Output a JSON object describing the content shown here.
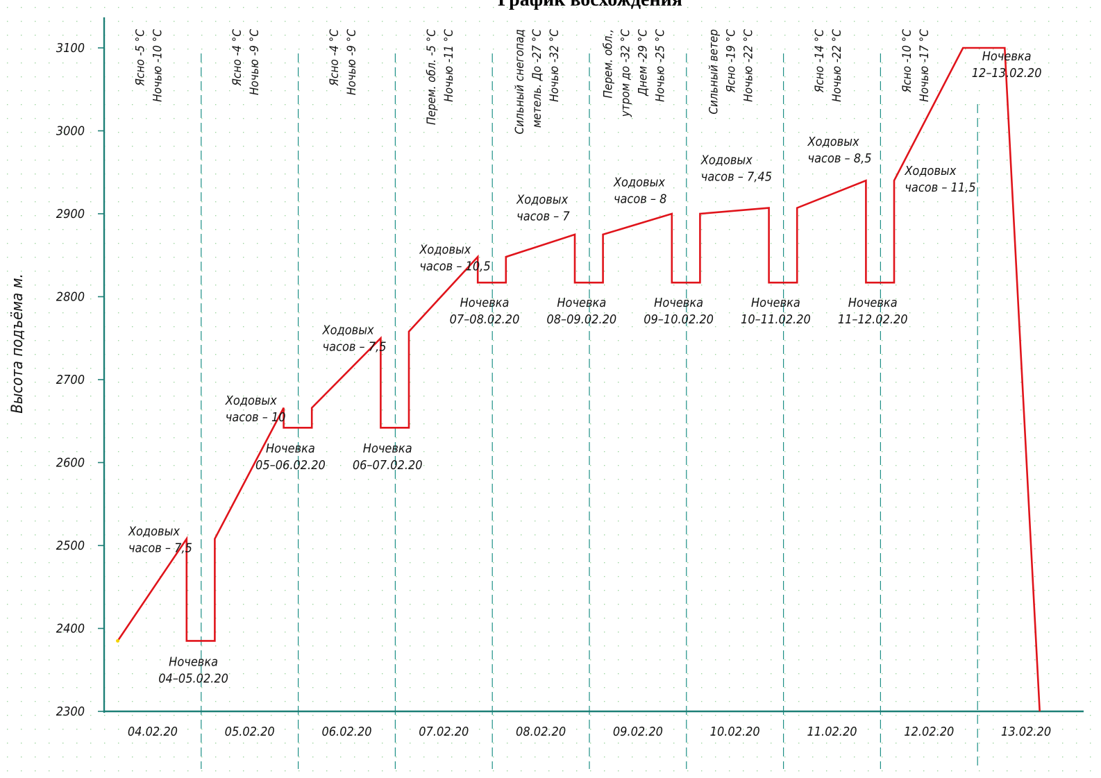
{
  "chart_data": {
    "type": "line",
    "title": "График восхождения",
    "ylabel": "Высота подъёма м.",
    "xlabel": "",
    "ylim": [
      2300,
      3100
    ],
    "yticks": [
      2300,
      2400,
      2500,
      2600,
      2700,
      2800,
      2900,
      3000,
      3100
    ],
    "x_range_days": [
      0,
      9.5
    ],
    "categories": [
      "04.02.20",
      "05.02.20",
      "06.02.20",
      "07.02.20",
      "08.02.20",
      "09.02.20",
      "10.02.20",
      "11.02.20",
      "12.02.20",
      "13.02.20"
    ],
    "colors": {
      "line": "#e0141b",
      "axis": "#1c7f76",
      "grid": "#1c8f86",
      "dots": "#7ac67e",
      "deg": "#1c7f76"
    },
    "series": [
      {
        "values": [
          {
            "x": 0.14,
            "y": 2385
          },
          {
            "x": 0.85,
            "y": 2508
          },
          {
            "x": 0.85,
            "y": 2385
          },
          {
            "x": 1.14,
            "y": 2385
          },
          {
            "x": 1.14,
            "y": 2508
          },
          {
            "x": 1.85,
            "y": 2666
          },
          {
            "x": 1.85,
            "y": 2642
          },
          {
            "x": 2.14,
            "y": 2642
          },
          {
            "x": 2.14,
            "y": 2666
          },
          {
            "x": 2.85,
            "y": 2750
          },
          {
            "x": 2.85,
            "y": 2642
          },
          {
            "x": 3.14,
            "y": 2642
          },
          {
            "x": 3.14,
            "y": 2758
          },
          {
            "x": 3.85,
            "y": 2848
          },
          {
            "x": 3.85,
            "y": 2817
          },
          {
            "x": 4.14,
            "y": 2817
          },
          {
            "x": 4.14,
            "y": 2848
          },
          {
            "x": 4.85,
            "y": 2875
          },
          {
            "x": 4.85,
            "y": 2817
          },
          {
            "x": 5.14,
            "y": 2817
          },
          {
            "x": 5.14,
            "y": 2875
          },
          {
            "x": 5.85,
            "y": 2900
          },
          {
            "x": 5.85,
            "y": 2817
          },
          {
            "x": 6.14,
            "y": 2817
          },
          {
            "x": 6.14,
            "y": 2900
          },
          {
            "x": 6.85,
            "y": 2907
          },
          {
            "x": 6.85,
            "y": 2817
          },
          {
            "x": 7.14,
            "y": 2817
          },
          {
            "x": 7.14,
            "y": 2907
          },
          {
            "x": 7.85,
            "y": 2940
          },
          {
            "x": 7.85,
            "y": 2817
          },
          {
            "x": 8.14,
            "y": 2817
          },
          {
            "x": 8.14,
            "y": 2940
          },
          {
            "x": 8.85,
            "y": 3100
          },
          {
            "x": 9.28,
            "y": 3100
          },
          {
            "x": 9.64,
            "y": 2300
          }
        ]
      }
    ],
    "annotations": [
      {
        "key": "h1",
        "lines": [
          "Ходовых",
          "часов – 7,5"
        ],
        "x": 0.25,
        "y": 2512
      },
      {
        "key": "h2",
        "lines": [
          "Ходовых",
          "часов – 10"
        ],
        "x": 1.25,
        "y": 2670
      },
      {
        "key": "h3",
        "lines": [
          "Ходовых",
          "часов – 7,5"
        ],
        "x": 2.25,
        "y": 2755
      },
      {
        "key": "h4",
        "lines": [
          "Ходовых",
          "часов – 10,5"
        ],
        "x": 3.25,
        "y": 2852
      },
      {
        "key": "h5",
        "lines": [
          "Ходовых",
          "часов – 7"
        ],
        "x": 4.25,
        "y": 2912
      },
      {
        "key": "h6",
        "lines": [
          "Ходовых",
          "часов – 8"
        ],
        "x": 5.25,
        "y": 2933
      },
      {
        "key": "h7",
        "lines": [
          "Ходовых",
          "часов – 7,45"
        ],
        "x": 6.15,
        "y": 2960
      },
      {
        "key": "h8",
        "lines": [
          "Ходовых",
          "часов – 8,5"
        ],
        "x": 7.25,
        "y": 2982
      },
      {
        "key": "h9",
        "lines": [
          "Ходовых",
          "часов – 11,5"
        ],
        "x": 8.25,
        "y": 2947
      },
      {
        "key": "n1",
        "lines": [
          "Ночевка",
          "04–05.02.20"
        ],
        "x": 0.92,
        "y": 2355
      },
      {
        "key": "n2",
        "lines": [
          "Ночевка",
          "05–06.02.20"
        ],
        "x": 1.92,
        "y": 2612
      },
      {
        "key": "n3",
        "lines": [
          "Ночевка",
          "06–07.02.20"
        ],
        "x": 2.92,
        "y": 2612
      },
      {
        "key": "n4",
        "lines": [
          "Ночевка",
          "07–08.02.20"
        ],
        "x": 3.92,
        "y": 2788
      },
      {
        "key": "n5",
        "lines": [
          "Ночевка",
          "08–09.02.20"
        ],
        "x": 4.92,
        "y": 2788
      },
      {
        "key": "n6",
        "lines": [
          "Ночевка",
          "09–10.02.20"
        ],
        "x": 5.92,
        "y": 2788
      },
      {
        "key": "n7",
        "lines": [
          "Ночевка",
          "10–11.02.20"
        ],
        "x": 6.92,
        "y": 2788
      },
      {
        "key": "n8",
        "lines": [
          "Ночевка",
          "11–12.02.20"
        ],
        "x": 7.92,
        "y": 2788
      },
      {
        "key": "n9",
        "lines": [
          "Ночевка",
          "12–13.02.20"
        ],
        "x": 9.3,
        "y": 3085
      }
    ],
    "weather": [
      {
        "key": "w1",
        "x": 0.5,
        "lines": [
          "Ясно -5 °С",
          "Ночью -10 °С"
        ]
      },
      {
        "key": "w2",
        "x": 1.5,
        "lines": [
          "Ясно -4 °С",
          "Ночью -9 °С"
        ]
      },
      {
        "key": "w3",
        "x": 2.5,
        "lines": [
          "Ясно -4 °С",
          "Ночью -9 °С"
        ]
      },
      {
        "key": "w4",
        "x": 3.5,
        "lines": [
          "Перем. обл. -5 °С",
          "Ночью -11 °С"
        ]
      },
      {
        "key": "w5",
        "x": 4.5,
        "lines": [
          "Сильный снегопад",
          "метель. До -27 °С",
          "Ночью -32 °С"
        ]
      },
      {
        "key": "w6",
        "x": 5.5,
        "lines": [
          "Перем. обл.,",
          "утром до -32 °С",
          "Днем -29 °С",
          "Ночью -25 °С"
        ]
      },
      {
        "key": "w7",
        "x": 6.5,
        "lines": [
          "Сильный ветер",
          "Ясно -19 °С",
          "Ночью -22 °С"
        ]
      },
      {
        "key": "w8",
        "x": 7.5,
        "lines": [
          "Ясно -14 °С",
          "Ночью -22 °С"
        ]
      },
      {
        "key": "w9",
        "x": 8.4,
        "lines": [
          "Ясно -10 °С",
          "Ночью -17 °С"
        ]
      }
    ]
  }
}
